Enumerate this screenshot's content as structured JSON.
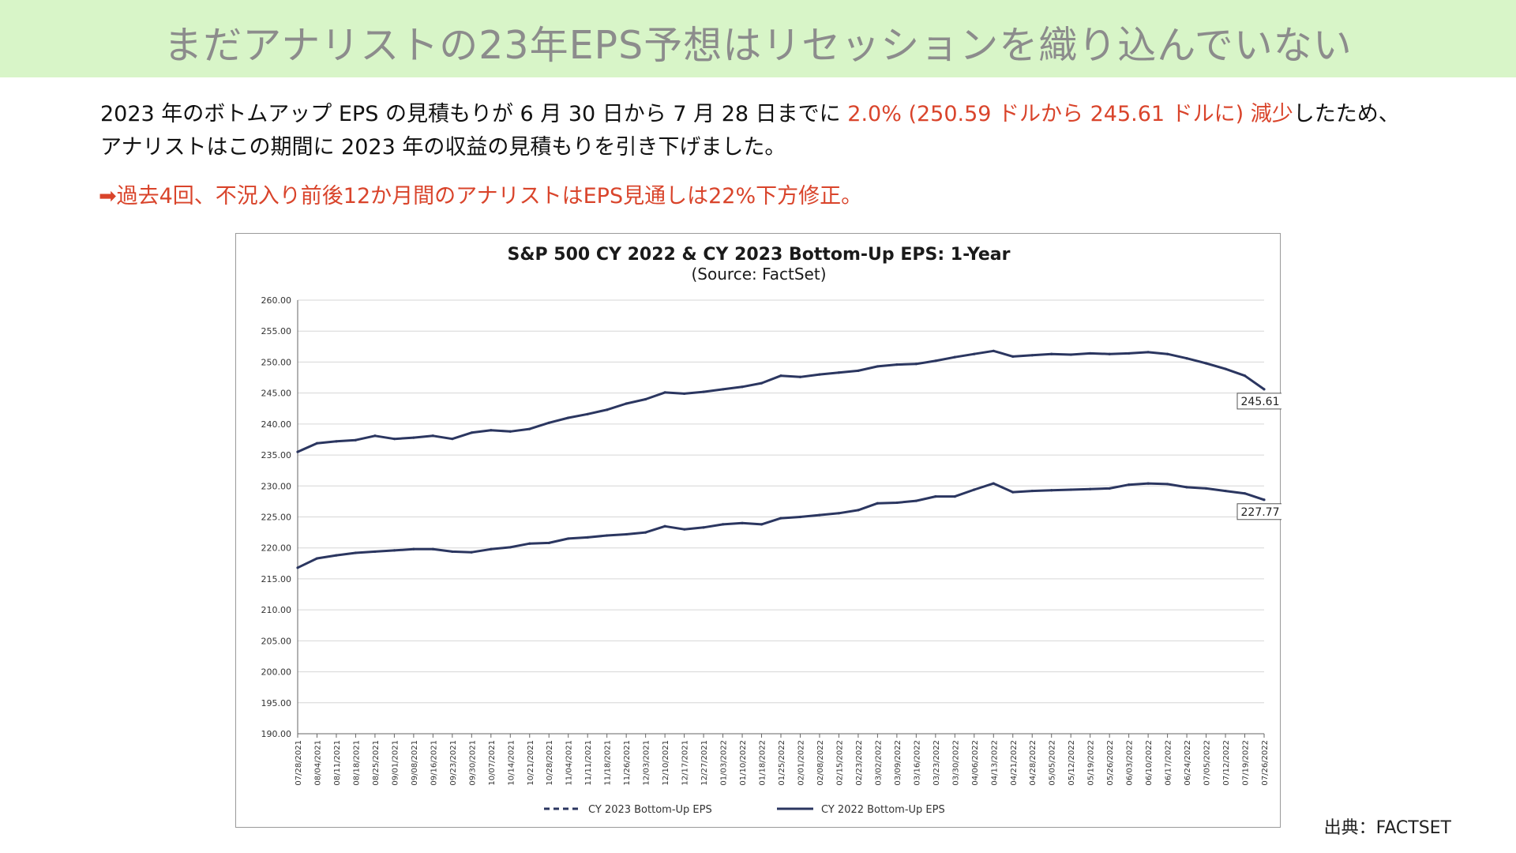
{
  "header": {
    "title": "まだアナリストの23年EPS予想はリセッションを織り込んでいない"
  },
  "body": {
    "line1_a": "2023 年のボトムアップ EPS の見積もりが 6 月 30 日から 7 月 28 日までに ",
    "line1_red": "2.0% (250.59 ドルから 245.61 ドルに) 減少",
    "line1_b": "したため、",
    "line2": "アナリストはこの期間に 2023 年の収益の見積もりを引き下げました。",
    "note": "➡過去4回、不況入り前後12か月間のアナリストはEPS見通しは22%下方修正。"
  },
  "footer": {
    "source": "出典：FACTSET"
  },
  "chart_data": {
    "type": "line",
    "title": "S&P 500 CY 2022 & CY 2023 Bottom-Up  EPS: 1-Year",
    "subtitle": "(Source: FactSet)",
    "ylim": [
      190,
      260
    ],
    "yticks": [
      "260.00",
      "255.00",
      "250.00",
      "245.00",
      "240.00",
      "235.00",
      "230.00",
      "225.00",
      "220.00",
      "215.00",
      "210.00",
      "205.00",
      "200.00",
      "195.00",
      "190.00"
    ],
    "x_labels": [
      "07/28/2021",
      "08/04/2021",
      "08/11/2021",
      "08/18/2021",
      "08/25/2021",
      "09/01/2021",
      "09/08/2021",
      "09/16/2021",
      "09/23/2021",
      "09/30/2021",
      "10/07/2021",
      "10/14/2021",
      "10/21/2021",
      "10/28/2021",
      "11/04/2021",
      "11/11/2021",
      "11/18/2021",
      "11/26/2021",
      "12/03/2021",
      "12/10/2021",
      "12/17/2021",
      "12/27/2021",
      "01/03/2022",
      "01/10/2022",
      "01/18/2022",
      "01/25/2022",
      "02/01/2022",
      "02/08/2022",
      "02/15/2022",
      "02/23/2022",
      "03/02/2022",
      "03/09/2022",
      "03/16/2022",
      "03/23/2022",
      "03/30/2022",
      "04/06/2022",
      "04/13/2022",
      "04/21/2022",
      "04/28/2022",
      "05/05/2022",
      "05/12/2022",
      "05/19/2022",
      "05/26/2022",
      "06/03/2022",
      "06/10/2022",
      "06/17/2022",
      "06/24/2022",
      "07/05/2022",
      "07/12/2022",
      "07/19/2022",
      "07/26/2022"
    ],
    "series": [
      {
        "name": "CY 2023 Bottom-Up EPS",
        "style": "dashed",
        "color": "#2b3660",
        "end_label": "245.61",
        "values": [
          235.5,
          236.9,
          237.2,
          237.4,
          238.1,
          237.6,
          237.8,
          238.1,
          237.6,
          238.6,
          239.0,
          238.8,
          239.2,
          240.2,
          241.0,
          241.6,
          242.3,
          243.3,
          244.0,
          245.1,
          244.9,
          245.2,
          245.6,
          246.0,
          246.6,
          247.8,
          247.6,
          248.0,
          248.3,
          248.6,
          249.3,
          249.6,
          249.7,
          250.2,
          250.8,
          251.3,
          251.8,
          250.9,
          251.1,
          251.3,
          251.2,
          251.4,
          251.3,
          251.4,
          251.6,
          251.3,
          250.6,
          249.8,
          248.9,
          247.8,
          245.61
        ]
      },
      {
        "name": "CY 2022 Bottom-Up EPS",
        "style": "solid",
        "color": "#2b3660",
        "end_label": "227.77",
        "values": [
          216.8,
          218.3,
          218.8,
          219.2,
          219.4,
          219.6,
          219.8,
          219.8,
          219.4,
          219.3,
          219.8,
          220.1,
          220.7,
          220.8,
          221.5,
          221.7,
          222.0,
          222.2,
          222.5,
          223.5,
          223.0,
          223.3,
          223.8,
          224.0,
          223.8,
          224.8,
          225.0,
          225.3,
          225.6,
          226.1,
          227.2,
          227.3,
          227.6,
          228.3,
          228.3,
          229.4,
          230.4,
          229.0,
          229.2,
          229.3,
          229.4,
          229.5,
          229.6,
          230.2,
          230.4,
          230.3,
          229.8,
          229.6,
          229.2,
          228.8,
          227.77
        ]
      }
    ]
  }
}
